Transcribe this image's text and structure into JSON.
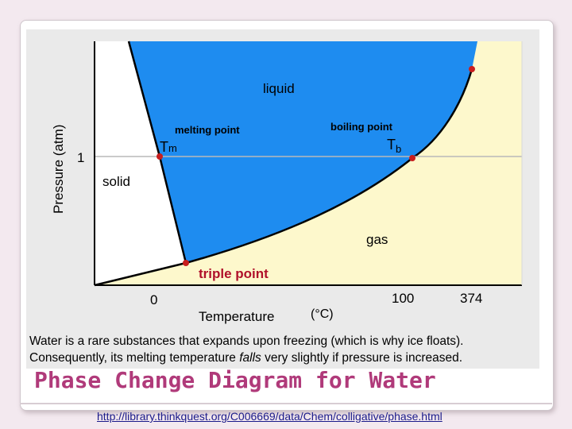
{
  "diagram": {
    "y_axis_label": "Pressure (atm)",
    "x_axis_label": "Temperature",
    "x_unit": "(°C)",
    "y_tick": "1",
    "x_ticks": [
      "0",
      "100",
      "374"
    ],
    "regions": {
      "solid": "solid",
      "liquid": "liquid",
      "gas": "gas"
    },
    "points": {
      "melting": "melting point",
      "boiling": "boiling point",
      "triple": "triple point",
      "tm_main": "T",
      "tm_sub": "m",
      "tb_main": "T",
      "tb_sub": "b"
    },
    "colors": {
      "liquid": "#1e8cf0",
      "gas": "#fdf8cc",
      "solid": "#ffffff",
      "point": "#c81e1e",
      "triple_label": "#b0102a",
      "frame": "#000000"
    }
  },
  "caption": {
    "part1": "Water is a rare substances that expands upon freezing (which is why ice floats). Consequently, its melting temperature ",
    "italic": "falls",
    "part2": " very slightly if pressure is increased."
  },
  "title": "Phase Change Diagram for Water",
  "source_url": "http://library.thinkquest.org/C006669/data/Chem/colligative/phase.html"
}
